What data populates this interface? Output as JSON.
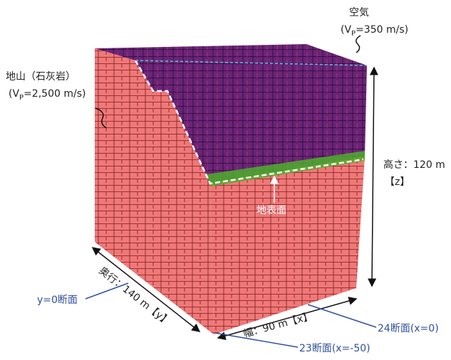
{
  "labels": {
    "air": {
      "name": "空気",
      "v_prefix": "(V",
      "v_sub": "P",
      "v_suffix": "=350 m/s)"
    },
    "rock": {
      "name": "地山（石灰岩）",
      "v_prefix": "(V",
      "v_sub": "P",
      "v_suffix": "=2,500 m/s)"
    },
    "height": {
      "text": "高さ：120 m",
      "axis": "【z】"
    },
    "surface": "地表面",
    "depth": "奥行：140 m【y】",
    "width": "幅：90 m【x】",
    "section_y0": "y=0断面",
    "section_24": "24断面(x=0)",
    "section_23": "23断面(x=-50)"
  }
}
